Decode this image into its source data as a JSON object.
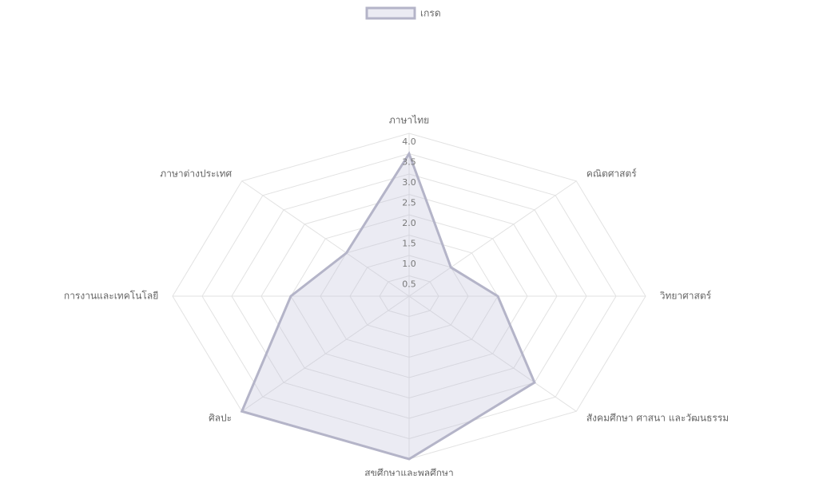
{
  "chart_data": {
    "type": "radar",
    "categories": [
      "ภาษาไทย",
      "คณิตศาสตร์",
      "วิทยาศาสตร์",
      "สังคมศึกษา ศาสนา และวัฒนธรรม",
      "สุขศึกษาและพลศึกษา",
      "ศิลปะ",
      "การงานและเทคโนโลยี",
      "ภาษาต่างประเทศ"
    ],
    "series": [
      {
        "name": "เกรด",
        "color": "#b4b4c8",
        "values": [
          3.5,
          1.0,
          1.5,
          3.0,
          4.0,
          4.0,
          2.0,
          1.5
        ]
      }
    ],
    "ylim": [
      0,
      4.0
    ],
    "yticks": [
      {
        "value": 0.5,
        "label": "0.5"
      },
      {
        "value": 1.0,
        "label": "1.0"
      },
      {
        "value": 1.5,
        "label": "1.5"
      },
      {
        "value": 2.0,
        "label": "2.0"
      },
      {
        "value": 2.5,
        "label": "2.5"
      },
      {
        "value": 3.0,
        "label": "3.0"
      },
      {
        "value": 3.5,
        "label": "3.5"
      },
      {
        "value": 4.0,
        "label": "4.0"
      }
    ],
    "legend": "top",
    "grid": true
  }
}
